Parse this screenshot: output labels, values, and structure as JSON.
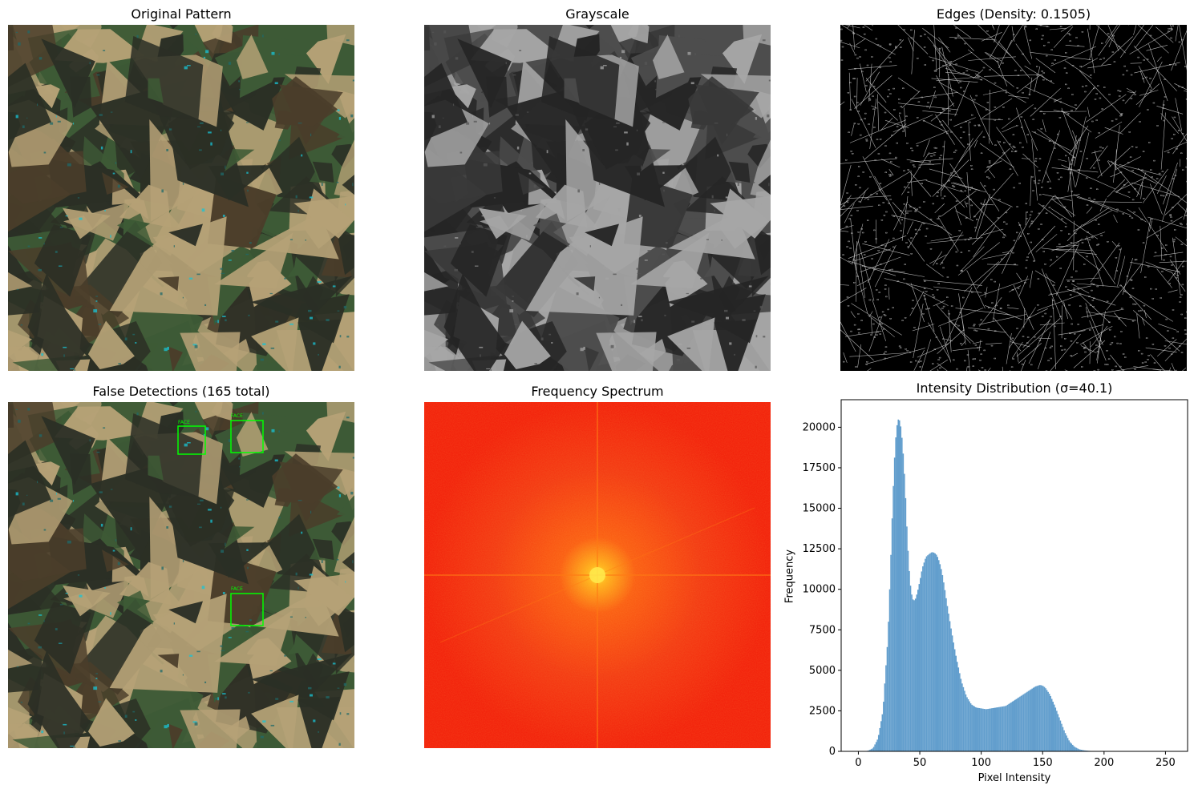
{
  "panels": {
    "original": {
      "title": "Original Pattern"
    },
    "grayscale": {
      "title": "Grayscale"
    },
    "edges": {
      "title": "Edges (Density: 0.1505)"
    },
    "detections": {
      "title": "False Detections (165 total)",
      "box_label": "FACE",
      "box_color": "#00ff00"
    },
    "spectrum": {
      "title": "Frequency Spectrum"
    },
    "histogram": {
      "title": "Intensity Distribution (σ=40.1)"
    }
  },
  "colors": {
    "camo_dark": "#2b2f25",
    "camo_green": "#3d5a36",
    "camo_brown": "#4a3d2a",
    "camo_tan": "#b5a176",
    "camo_cyan": "#18c4d6",
    "spectrum_bg": "#f21a08",
    "spectrum_center": "#ffd21a",
    "hist_bar": "#3b86c0"
  },
  "chart_data": {
    "type": "bar",
    "title": "Intensity Distribution (σ=40.1)",
    "xlabel": "Pixel Intensity",
    "ylabel": "Frequency",
    "xlim": [
      -14,
      268
    ],
    "ylim": [
      0,
      21700
    ],
    "xticks": [
      0,
      50,
      100,
      150,
      200,
      250
    ],
    "yticks": [
      0,
      2500,
      5000,
      7500,
      10000,
      12500,
      15000,
      17500,
      20000
    ],
    "x": [
      4,
      8,
      12,
      16,
      20,
      24,
      26,
      28,
      30,
      32,
      34,
      36,
      38,
      40,
      42,
      44,
      46,
      48,
      50,
      52,
      55,
      58,
      60,
      62,
      64,
      66,
      68,
      70,
      72,
      75,
      78,
      80,
      84,
      88,
      92,
      96,
      100,
      104,
      108,
      112,
      116,
      120,
      124,
      128,
      132,
      136,
      140,
      144,
      148,
      150,
      152,
      156,
      160,
      164,
      168,
      172,
      176,
      180,
      184,
      188,
      192,
      196,
      200,
      210,
      220,
      240,
      255
    ],
    "values": [
      0,
      40,
      200,
      800,
      2500,
      7000,
      11000,
      15500,
      19000,
      20500,
      20400,
      19000,
      16500,
      13000,
      10500,
      9400,
      9300,
      9800,
      10500,
      11300,
      12000,
      12200,
      12300,
      12250,
      12100,
      11700,
      11100,
      10200,
      9200,
      7800,
      6500,
      5700,
      4300,
      3400,
      2900,
      2700,
      2650,
      2600,
      2650,
      2700,
      2750,
      2800,
      3000,
      3200,
      3400,
      3600,
      3800,
      4000,
      4100,
      4050,
      3950,
      3500,
      2800,
      2000,
      1200,
      600,
      280,
      120,
      60,
      30,
      15,
      8,
      4,
      2,
      1,
      0,
      0
    ],
    "annotations": []
  }
}
